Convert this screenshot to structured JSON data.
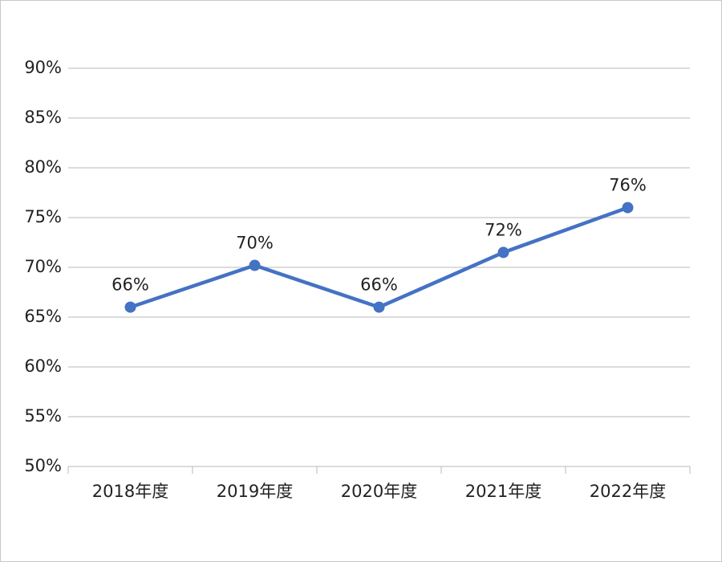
{
  "chart_data": {
    "type": "line",
    "categories": [
      "2018年度",
      "2019年度",
      "2020年度",
      "2021年度",
      "2022年度"
    ],
    "series": [
      {
        "name": null,
        "color": "#4472c4",
        "values": [
          66,
          70.2,
          66,
          71.5,
          76
        ],
        "value_labels": [
          "66%",
          "70%",
          "66%",
          "72%",
          "76%"
        ]
      }
    ],
    "ylim": [
      50,
      90
    ],
    "yticks": [
      {
        "value": 50,
        "label": "50%"
      },
      {
        "value": 55,
        "label": "55%"
      },
      {
        "value": 60,
        "label": "60%"
      },
      {
        "value": 65,
        "label": "65%"
      },
      {
        "value": 70,
        "label": "70%"
      },
      {
        "value": 75,
        "label": "75%"
      },
      {
        "value": 80,
        "label": "80%"
      },
      {
        "value": 85,
        "label": "85%"
      },
      {
        "value": 90,
        "label": "90%"
      }
    ],
    "grid": true
  }
}
